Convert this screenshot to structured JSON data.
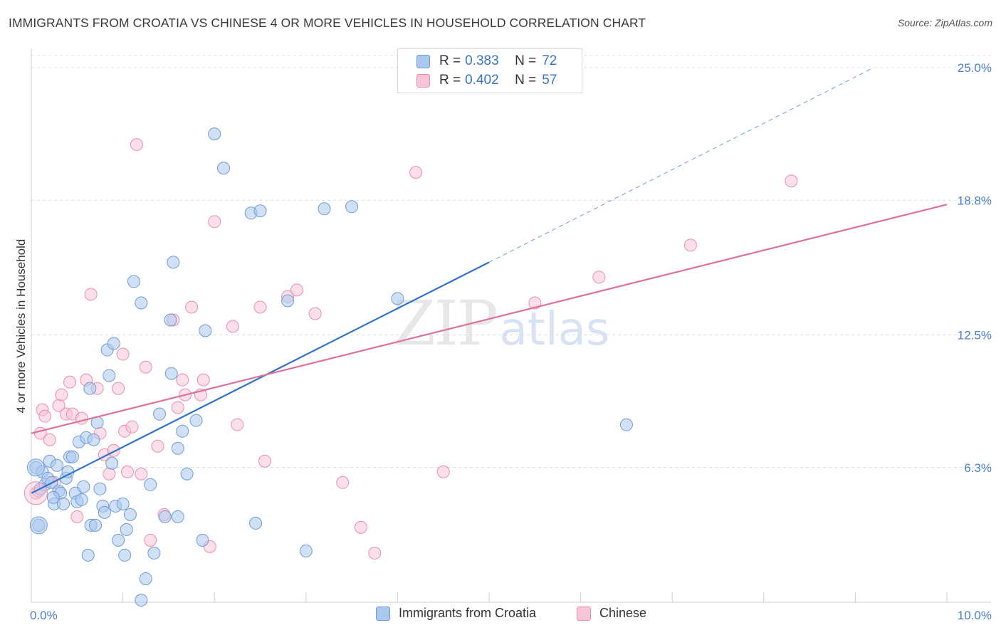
{
  "title": "IMMIGRANTS FROM CROATIA VS CHINESE 4 OR MORE VEHICLES IN HOUSEHOLD CORRELATION CHART",
  "source": "Source: ZipAtlas.com",
  "watermark": {
    "zip": "ZIP",
    "atlas": "atlas"
  },
  "legend": {
    "r_label": "R =",
    "n_label": "N =",
    "rows": [
      {
        "r": "0.383",
        "n": "72",
        "color": "#aac8ee",
        "border": "#6f9bd8"
      },
      {
        "r": "0.402",
        "n": "57",
        "color": "#f9c5d6",
        "border": "#e98fae"
      }
    ]
  },
  "colors": {
    "croatia_fill": "#aac8ee",
    "croatia_stroke": "#6f9bd8",
    "croatia_line": "#2f72cc",
    "chinese_fill": "#f9c5d6",
    "chinese_stroke": "#e98fae",
    "chinese_line": "#e0709a",
    "tick_text": "#4a7fcf",
    "grid": "#dcdcdc"
  },
  "chart_data": {
    "type": "scatter",
    "title": "IMMIGRANTS FROM CROATIA VS CHINESE 4 OR MORE VEHICLES IN HOUSEHOLD CORRELATION CHART",
    "xlabel": "",
    "ylabel": "4 or more Vehicles in Household",
    "xlim": [
      0,
      10
    ],
    "ylim": [
      0,
      25.9
    ],
    "x_tick_labels": [
      {
        "value": 0,
        "label": "0.0%"
      },
      {
        "value": 10,
        "label": "10.0%"
      }
    ],
    "y_tick_labels": [
      {
        "value": 6.3,
        "label": "6.3%"
      },
      {
        "value": 12.5,
        "label": "12.5%"
      },
      {
        "value": 18.8,
        "label": "18.8%"
      },
      {
        "value": 25.0,
        "label": "25.0%"
      }
    ],
    "grid": "horizontal dashed",
    "legend_position": "top-center, bottom",
    "series": [
      {
        "name": "Immigrants from Croatia",
        "r": 0.383,
        "n": 72,
        "trend": {
          "x": [
            0,
            5
          ],
          "y": [
            5.1,
            15.9
          ],
          "dashed_extension": {
            "x": [
              5,
              9.2
            ],
            "y": [
              15.9,
              25.0
            ]
          }
        },
        "points": [
          [
            0.05,
            6.3
          ],
          [
            0.08,
            3.6
          ],
          [
            0.1,
            5.3
          ],
          [
            0.12,
            6.1
          ],
          [
            0.15,
            5.5
          ],
          [
            0.18,
            5.8
          ],
          [
            0.2,
            6.6
          ],
          [
            0.22,
            5.6
          ],
          [
            0.25,
            4.6
          ],
          [
            0.28,
            6.4
          ],
          [
            0.3,
            5.2
          ],
          [
            0.32,
            5.1
          ],
          [
            0.35,
            4.6
          ],
          [
            0.38,
            5.8
          ],
          [
            0.4,
            6.1
          ],
          [
            0.42,
            6.8
          ],
          [
            0.45,
            6.8
          ],
          [
            0.48,
            5.1
          ],
          [
            0.5,
            4.7
          ],
          [
            0.52,
            7.5
          ],
          [
            0.55,
            4.8
          ],
          [
            0.57,
            5.4
          ],
          [
            0.6,
            7.7
          ],
          [
            0.62,
            2.2
          ],
          [
            0.65,
            3.6
          ],
          [
            0.68,
            7.6
          ],
          [
            0.7,
            3.6
          ],
          [
            0.72,
            8.4
          ],
          [
            0.75,
            5.3
          ],
          [
            0.78,
            4.5
          ],
          [
            0.8,
            4.2
          ],
          [
            0.83,
            11.8
          ],
          [
            0.85,
            10.6
          ],
          [
            0.88,
            6.5
          ],
          [
            0.92,
            4.5
          ],
          [
            0.95,
            2.9
          ],
          [
            1.0,
            4.6
          ],
          [
            1.02,
            2.2
          ],
          [
            1.04,
            3.4
          ],
          [
            1.08,
            4.1
          ],
          [
            1.12,
            15.0
          ],
          [
            1.2,
            14.0
          ],
          [
            1.25,
            1.1
          ],
          [
            1.3,
            5.5
          ],
          [
            1.34,
            2.3
          ],
          [
            1.4,
            8.8
          ],
          [
            1.46,
            4.0
          ],
          [
            1.52,
            13.2
          ],
          [
            1.53,
            10.7
          ],
          [
            1.55,
            15.9
          ],
          [
            1.6,
            7.2
          ],
          [
            1.65,
            8.0
          ],
          [
            1.7,
            6.0
          ],
          [
            1.8,
            8.5
          ],
          [
            1.87,
            2.9
          ],
          [
            1.9,
            12.7
          ],
          [
            2.0,
            21.9
          ],
          [
            2.1,
            20.3
          ],
          [
            2.4,
            18.2
          ],
          [
            2.45,
            3.7
          ],
          [
            2.5,
            18.3
          ],
          [
            2.8,
            14.1
          ],
          [
            3.0,
            2.4
          ],
          [
            3.2,
            18.4
          ],
          [
            3.5,
            18.5
          ],
          [
            4.0,
            14.2
          ],
          [
            6.5,
            8.3
          ],
          [
            1.2,
            0.1
          ],
          [
            1.6,
            4.0
          ],
          [
            0.9,
            12.1
          ],
          [
            0.64,
            10.0
          ],
          [
            0.24,
            4.9
          ]
        ]
      },
      {
        "name": "Chinese",
        "r": 0.402,
        "n": 57,
        "trend": {
          "x": [
            0,
            10
          ],
          "y": [
            7.9,
            18.6
          ]
        },
        "points": [
          [
            0.05,
            5.1
          ],
          [
            0.08,
            5.2
          ],
          [
            0.1,
            7.9
          ],
          [
            0.12,
            9.0
          ],
          [
            0.15,
            8.7
          ],
          [
            0.2,
            7.6
          ],
          [
            0.25,
            5.6
          ],
          [
            0.3,
            9.2
          ],
          [
            0.33,
            9.7
          ],
          [
            0.38,
            8.8
          ],
          [
            0.42,
            10.3
          ],
          [
            0.45,
            8.8
          ],
          [
            0.5,
            4.0
          ],
          [
            0.55,
            8.6
          ],
          [
            0.6,
            10.4
          ],
          [
            0.65,
            14.4
          ],
          [
            0.72,
            10.0
          ],
          [
            0.75,
            7.9
          ],
          [
            0.8,
            6.9
          ],
          [
            0.85,
            6.0
          ],
          [
            0.9,
            7.1
          ],
          [
            0.95,
            10.0
          ],
          [
            1.0,
            11.6
          ],
          [
            1.02,
            8.0
          ],
          [
            1.05,
            6.1
          ],
          [
            1.1,
            8.2
          ],
          [
            1.15,
            21.4
          ],
          [
            1.2,
            6.0
          ],
          [
            1.25,
            11.0
          ],
          [
            1.3,
            2.9
          ],
          [
            1.38,
            7.3
          ],
          [
            1.45,
            4.1
          ],
          [
            1.55,
            13.2
          ],
          [
            1.6,
            9.1
          ],
          [
            1.65,
            10.4
          ],
          [
            1.68,
            9.7
          ],
          [
            1.75,
            13.8
          ],
          [
            1.85,
            9.7
          ],
          [
            1.88,
            10.4
          ],
          [
            1.95,
            2.6
          ],
          [
            2.0,
            17.8
          ],
          [
            2.2,
            12.9
          ],
          [
            2.25,
            8.3
          ],
          [
            2.5,
            13.8
          ],
          [
            2.55,
            6.6
          ],
          [
            2.8,
            14.3
          ],
          [
            2.9,
            14.6
          ],
          [
            3.1,
            13.5
          ],
          [
            3.4,
            5.6
          ],
          [
            3.6,
            3.5
          ],
          [
            3.75,
            2.3
          ],
          [
            4.2,
            20.1
          ],
          [
            4.5,
            6.1
          ],
          [
            5.5,
            14.0
          ],
          [
            6.2,
            15.2
          ],
          [
            7.2,
            16.7
          ],
          [
            8.3,
            19.7
          ]
        ]
      }
    ]
  },
  "bottom_legend": [
    {
      "label": "Immigrants from Croatia"
    },
    {
      "label": "Chinese"
    }
  ]
}
